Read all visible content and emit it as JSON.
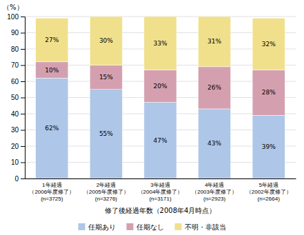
{
  "chart_data": {
    "type": "bar",
    "stacked": true,
    "x_label": "修了後経過年数（2008年4月時点）",
    "y_label": "（%）",
    "categories": [
      "1年経過\n（2006年度修了）\n(n=3725)",
      "2年経過\n（2005年度修了）\n(n=3276)",
      "3年経過\n（2004年度修了）\n(n=3171)",
      "4年経過\n（2003年度修了）\n(n=2923)",
      "5年経過\n（2002年度修了）\n(n=2664)"
    ],
    "series": [
      {
        "name": "任期あり",
        "color": "#aec6e8",
        "values": [
          62,
          55,
          47,
          43,
          39
        ],
        "value_labels": [
          "62%",
          "55%",
          "47%",
          "43%",
          "39%"
        ]
      },
      {
        "name": "任期なし",
        "color": "#d4a0b0",
        "values": [
          10,
          15,
          20,
          26,
          28
        ],
        "value_labels": [
          "10%",
          "15%",
          "20%",
          "26%",
          "28%"
        ]
      },
      {
        "name": "不明・非該当",
        "color": "#f0e08c",
        "values": [
          27,
          30,
          33,
          31,
          32
        ],
        "value_labels": [
          "27%",
          "30%",
          "33%",
          "31%",
          "32%"
        ]
      }
    ],
    "ylim": [
      0,
      100
    ],
    "yticks": [
      0,
      10,
      20,
      30,
      40,
      50,
      60,
      70,
      80,
      90,
      100
    ],
    "grid": true,
    "data_labels": true,
    "legend": "bottom"
  }
}
